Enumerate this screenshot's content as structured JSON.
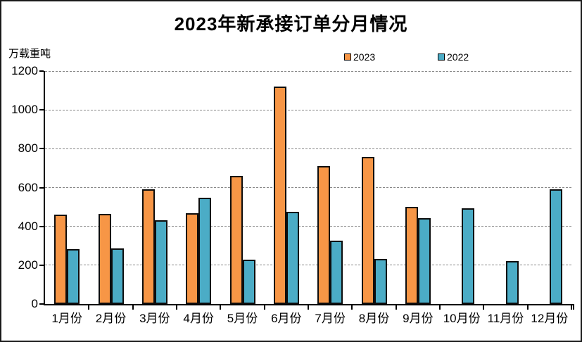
{
  "header": {
    "title": "2023年新承接订单分月情况"
  },
  "colors": {
    "background": "#ffffff",
    "frame_border": "#1a1a1a",
    "gridline": "#888888",
    "axis": "#000000",
    "bar_outline": "#0d0d0d",
    "series_2023": "#F79646",
    "series_2022": "#4BACC6"
  },
  "chart_data": {
    "type": "bar",
    "title": "2023年新承接订单分月情况",
    "xlabel": "",
    "ylabel": "万载重吨",
    "categories": [
      "1月份",
      "2月份",
      "3月份",
      "4月份",
      "5月份",
      "6月份",
      "7月份",
      "8月份",
      "9月份",
      "10月份",
      "11月份",
      "12月份"
    ],
    "series": [
      {
        "name": "2023",
        "color": "#F79646",
        "values": [
          460,
          464,
          591,
          467,
          659,
          1121,
          709,
          756,
          502,
          null,
          null,
          null
        ]
      },
      {
        "name": "2022",
        "color": "#4BACC6",
        "values": [
          283,
          285,
          430,
          546,
          229,
          476,
          328,
          233,
          441,
          494,
          220,
          591
        ]
      }
    ],
    "ylim": [
      0,
      1200
    ],
    "yticks": [
      0,
      200,
      400,
      600,
      800,
      1000,
      1200
    ],
    "grid": true,
    "legend_position": "top-center",
    "bar_outline": true
  }
}
